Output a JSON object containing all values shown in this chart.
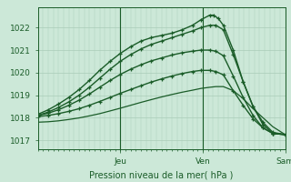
{
  "background_color": "#cce8d8",
  "grid_color": "#aaccb8",
  "line_color": "#1a5c28",
  "marker": "+",
  "xlabel": "Pression niveau de la mer( hPa )",
  "ylim": [
    1016.6,
    1022.9
  ],
  "yticks": [
    1017,
    1018,
    1019,
    1020,
    1021,
    1022
  ],
  "day_labels": [
    "Jeu",
    "Ven",
    "Sam"
  ],
  "day_positions": [
    0.333,
    0.667,
    1.0
  ],
  "minor_xtick_step": 0.02083,
  "series": [
    {
      "x": [
        0.0,
        0.042,
        0.083,
        0.125,
        0.167,
        0.208,
        0.25,
        0.292,
        0.333,
        0.375,
        0.417,
        0.458,
        0.5,
        0.542,
        0.583,
        0.625,
        0.66,
        0.695,
        0.71,
        0.73,
        0.75,
        0.79,
        0.83,
        0.87,
        0.91,
        0.95,
        1.0
      ],
      "y": [
        1018.15,
        1018.35,
        1018.6,
        1018.9,
        1019.25,
        1019.65,
        1020.1,
        1020.5,
        1020.85,
        1021.15,
        1021.4,
        1021.55,
        1021.65,
        1021.75,
        1021.9,
        1022.1,
        1022.35,
        1022.55,
        1022.55,
        1022.4,
        1022.1,
        1021.0,
        1019.6,
        1018.5,
        1017.7,
        1017.3,
        1017.25
      ],
      "has_marker": true,
      "lw": 1.0
    },
    {
      "x": [
        0.0,
        0.042,
        0.083,
        0.125,
        0.167,
        0.208,
        0.25,
        0.292,
        0.333,
        0.375,
        0.417,
        0.458,
        0.5,
        0.542,
        0.583,
        0.625,
        0.66,
        0.695,
        0.72,
        0.75,
        0.79,
        0.83,
        0.87,
        0.91,
        0.95,
        1.0
      ],
      "y": [
        1018.1,
        1018.25,
        1018.45,
        1018.7,
        1019.0,
        1019.35,
        1019.75,
        1020.15,
        1020.5,
        1020.8,
        1021.05,
        1021.25,
        1021.4,
        1021.55,
        1021.7,
        1021.85,
        1022.0,
        1022.1,
        1022.1,
        1021.9,
        1020.8,
        1019.6,
        1018.5,
        1017.8,
        1017.35,
        1017.25
      ],
      "has_marker": true,
      "lw": 1.0
    },
    {
      "x": [
        0.0,
        0.042,
        0.083,
        0.125,
        0.167,
        0.208,
        0.25,
        0.292,
        0.333,
        0.375,
        0.417,
        0.458,
        0.5,
        0.542,
        0.583,
        0.625,
        0.66,
        0.695,
        0.72,
        0.75,
        0.79,
        0.83,
        0.87,
        0.91,
        0.95,
        1.0
      ],
      "y": [
        1018.1,
        1018.2,
        1018.35,
        1018.55,
        1018.78,
        1019.05,
        1019.35,
        1019.65,
        1019.92,
        1020.15,
        1020.35,
        1020.52,
        1020.65,
        1020.78,
        1020.88,
        1020.95,
        1021.0,
        1021.0,
        1020.95,
        1020.75,
        1019.85,
        1018.9,
        1018.1,
        1017.55,
        1017.3,
        1017.25
      ],
      "has_marker": true,
      "lw": 1.0
    },
    {
      "x": [
        0.0,
        0.042,
        0.083,
        0.125,
        0.167,
        0.208,
        0.25,
        0.292,
        0.333,
        0.375,
        0.417,
        0.458,
        0.5,
        0.542,
        0.583,
        0.625,
        0.66,
        0.695,
        0.72,
        0.75,
        0.79,
        0.83,
        0.87,
        0.91,
        0.95,
        1.0
      ],
      "y": [
        1018.05,
        1018.1,
        1018.18,
        1018.28,
        1018.4,
        1018.55,
        1018.72,
        1018.9,
        1019.08,
        1019.25,
        1019.42,
        1019.58,
        1019.72,
        1019.85,
        1019.96,
        1020.05,
        1020.1,
        1020.1,
        1020.05,
        1019.9,
        1019.2,
        1018.55,
        1017.95,
        1017.55,
        1017.3,
        1017.25
      ],
      "has_marker": true,
      "lw": 1.0
    },
    {
      "x": [
        0.0,
        0.042,
        0.083,
        0.125,
        0.167,
        0.208,
        0.25,
        0.292,
        0.333,
        0.375,
        0.417,
        0.458,
        0.5,
        0.542,
        0.583,
        0.625,
        0.66,
        0.695,
        0.72,
        0.75,
        0.79,
        0.83,
        0.87,
        0.91,
        0.95,
        1.0
      ],
      "y": [
        1017.8,
        1017.82,
        1017.86,
        1017.92,
        1017.99,
        1018.08,
        1018.18,
        1018.3,
        1018.42,
        1018.55,
        1018.68,
        1018.8,
        1018.92,
        1019.03,
        1019.13,
        1019.22,
        1019.3,
        1019.35,
        1019.38,
        1019.38,
        1019.2,
        1018.85,
        1018.4,
        1018.0,
        1017.6,
        1017.25
      ],
      "has_marker": false,
      "lw": 0.9
    }
  ]
}
